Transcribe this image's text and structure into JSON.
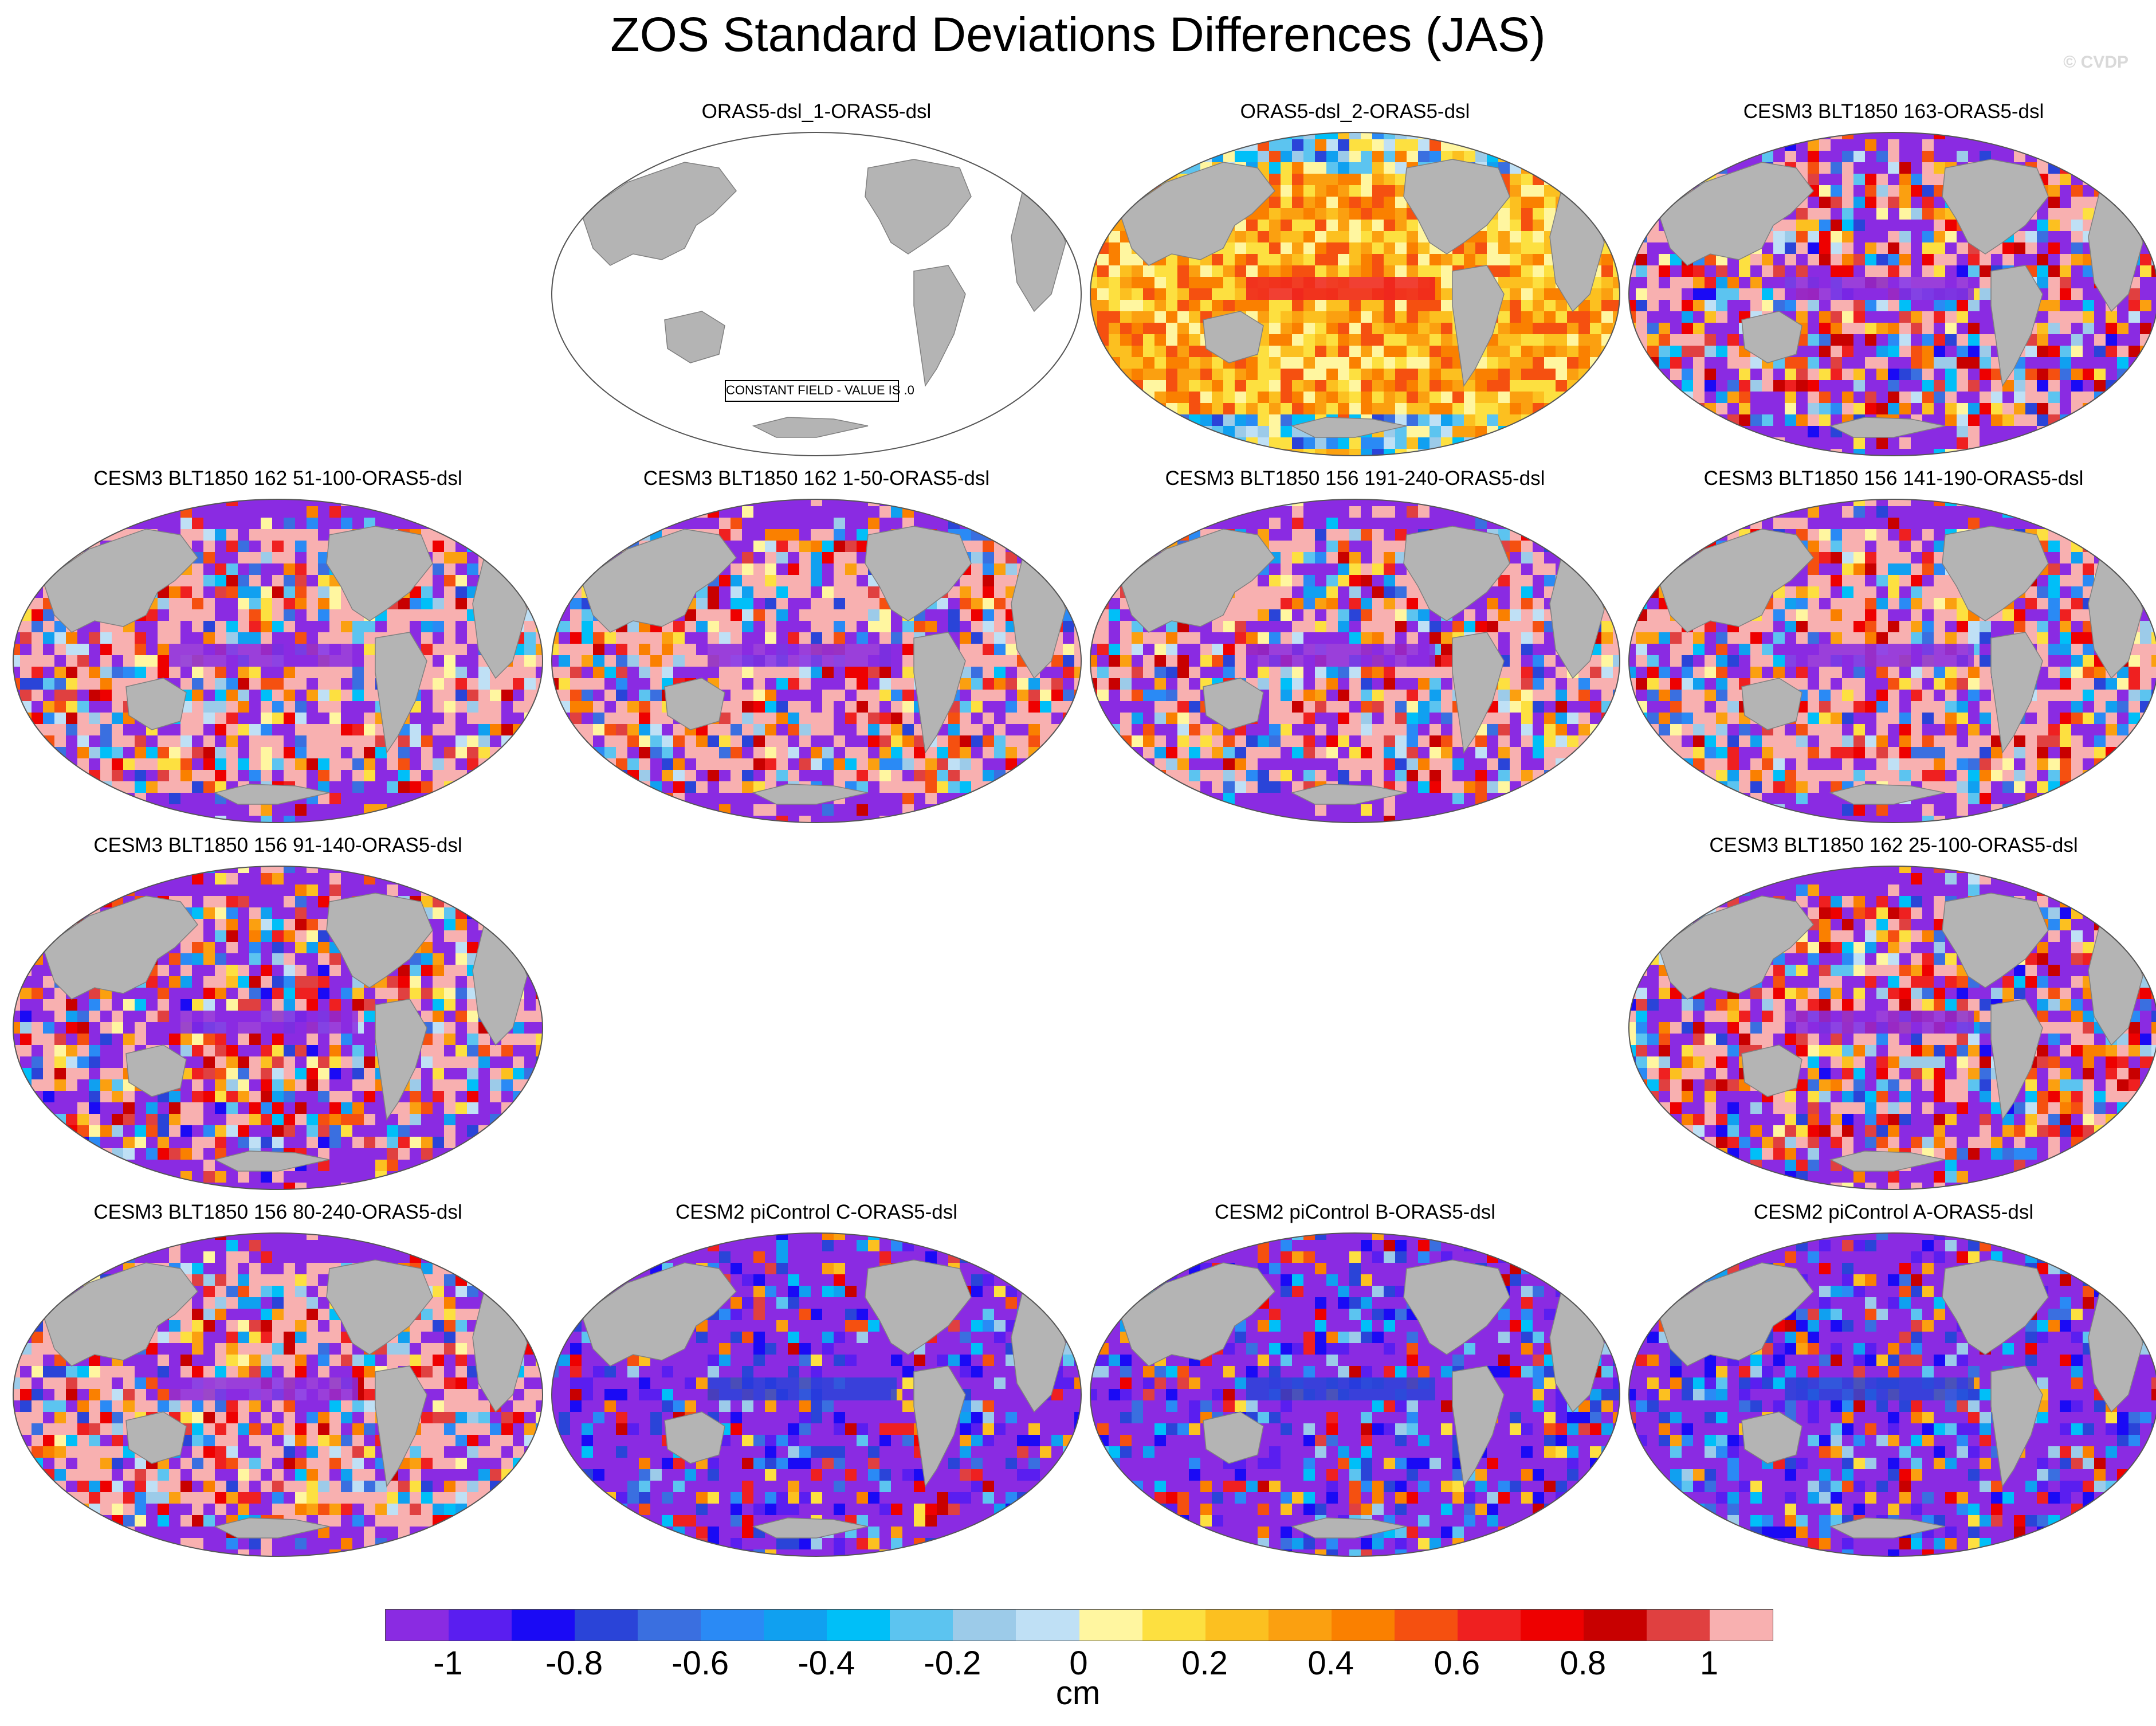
{
  "title": "ZOS Standard Deviations Differences (JAS)",
  "copyright": "© CVDP",
  "constant_note": "CONSTANT FIELD - VALUE IS .0",
  "panels": [
    {
      "title": "ORAS5-dsl_1-ORAS5-dsl",
      "style": "constant"
    },
    {
      "title": "ORAS5-dsl_2-ORAS5-dsl",
      "style": "warm"
    },
    {
      "title": "CESM3 BLT1850 163-ORAS5-dsl",
      "style": "mixed"
    },
    {
      "title": "CESM3 BLT1850 162 51-100-ORAS5-dsl",
      "style": "pink"
    },
    {
      "title": "CESM3 BLT1850 162 1-50-ORAS5-dsl",
      "style": "pink"
    },
    {
      "title": "CESM3 BLT1850 156 191-240-ORAS5-dsl",
      "style": "pink"
    },
    {
      "title": "CESM3 BLT1850 156 141-190-ORAS5-dsl",
      "style": "pink"
    },
    {
      "title": "CESM3 BLT1850 156 91-140-ORAS5-dsl",
      "style": "mixed"
    },
    {
      "title": "CESM3 BLT1850 162 25-100-ORAS5-dsl",
      "style": "mixed"
    },
    {
      "title": "CESM3 BLT1850 156 80-240-ORAS5-dsl",
      "style": "pink"
    },
    {
      "title": "CESM2 piControl C-ORAS5-dsl",
      "style": "cool"
    },
    {
      "title": "CESM2 piControl B-ORAS5-dsl",
      "style": "cool"
    },
    {
      "title": "CESM2 piControl A-ORAS5-dsl",
      "style": "cool"
    }
  ],
  "colorbar": {
    "units": "cm",
    "colors": [
      "#8a2be2",
      "#5a1ef0",
      "#1a0af5",
      "#2a44d8",
      "#3a6fe0",
      "#2a8af5",
      "#10a0f0",
      "#00bff8",
      "#5cc4f0",
      "#9ccbe9",
      "#bfe0f5",
      "#fff6a0",
      "#fde040",
      "#fcc020",
      "#fba010",
      "#fa8000",
      "#f55010",
      "#ef2020",
      "#ee0000",
      "#c80000",
      "#e04040",
      "#f8b0b0"
    ],
    "labels": [
      "-1",
      "-0.8",
      "-0.6",
      "-0.4",
      "-0.2",
      "0",
      "0.2",
      "0.4",
      "0.6",
      "0.8",
      "1"
    ],
    "min": -1.1,
    "max": 1.1
  }
}
